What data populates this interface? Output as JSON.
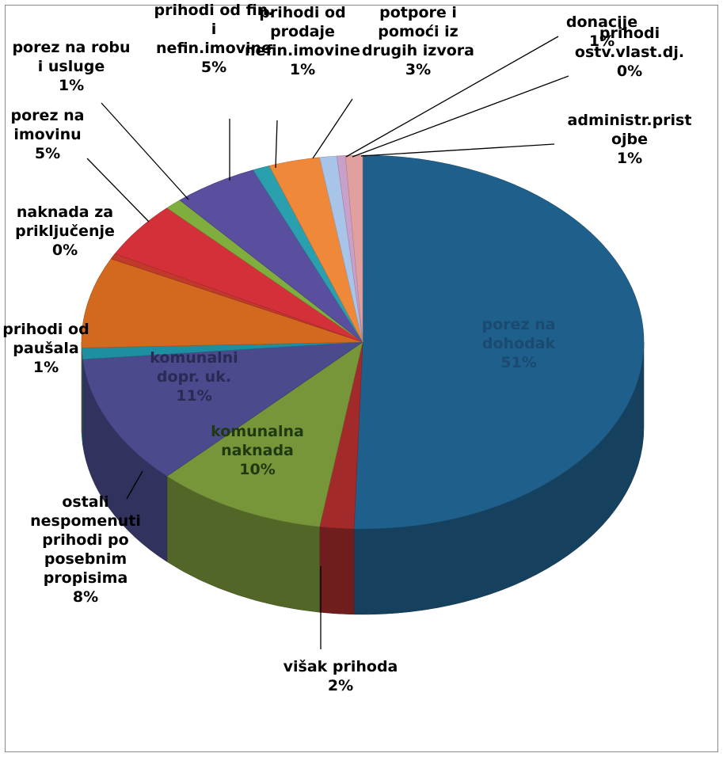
{
  "chart_data": {
    "type": "pie",
    "title": "",
    "style": "3d",
    "slices": [
      {
        "label": "porez na dohodak",
        "lines": [
          "porez na",
          "dohodak"
        ],
        "pct_label": "51%",
        "value": 51.5,
        "color": "#1F5F8B",
        "label_inside": true
      },
      {
        "label": "višak prihoda",
        "lines": [
          "višak prihoda"
        ],
        "pct_label": "2%",
        "value": 2,
        "color": "#A32A2A"
      },
      {
        "label": "komunalna naknada",
        "lines": [
          "komunalna",
          "naknada"
        ],
        "pct_label": "10%",
        "value": 10,
        "color": "#77963A",
        "label_inside": true
      },
      {
        "label": "komunalni dopr. uk.",
        "lines": [
          "komunalni",
          "dopr. uk."
        ],
        "pct_label": "11%",
        "value": 11.5,
        "color": "#4A4A8C",
        "label_inside": true
      },
      {
        "label": "prihodi od paušala",
        "lines": [
          "prihodi od",
          "paušala"
        ],
        "pct_label": "1%",
        "value": 1,
        "color": "#1E8FA0"
      },
      {
        "label": "ostali nespomenuti prihodi po posebnim propisima",
        "lines": [
          "ostali",
          "nespomenuti",
          "prihodi po",
          "posebnim",
          "propisima"
        ],
        "pct_label": "8%",
        "value": 8,
        "color": "#D2691E"
      },
      {
        "label": "naknada za priključenje",
        "lines": [
          "naknada za",
          "priključenje"
        ],
        "pct_label": "0%",
        "value": 0.5,
        "color": "#C0392B"
      },
      {
        "label": "porez na imovinu",
        "lines": [
          "porez na",
          "imovinu"
        ],
        "pct_label": "5%",
        "value": 5,
        "color": "#D3303A"
      },
      {
        "label": "porez na robu i usluge",
        "lines": [
          "porez na robu",
          "i usluge"
        ],
        "pct_label": "1%",
        "value": 1,
        "color": "#7FAE3E"
      },
      {
        "label": "prihodi od fin. i nefin.imovine",
        "lines": [
          "prihodi od fin.",
          "i",
          "nefin.imovine"
        ],
        "pct_label": "5%",
        "value": 5,
        "color": "#5A4E9E"
      },
      {
        "label": "prihodi od prodaje nefin.imovine",
        "lines": [
          "prihodi od",
          "prodaje",
          "nefin.imovine"
        ],
        "pct_label": "1%",
        "value": 1,
        "color": "#2A9FAE"
      },
      {
        "label": "potpore i pomoći iz drugih izvora",
        "lines": [
          "potpore i",
          "pomoći iz",
          "drugih izvora"
        ],
        "pct_label": "3%",
        "value": 3,
        "color": "#F0883A"
      },
      {
        "label": "donacije",
        "lines": [
          "donacije"
        ],
        "pct_label": "1%",
        "value": 1,
        "color": "#A8C4E8"
      },
      {
        "label": "prihodi ostv.vlast.dj.",
        "lines": [
          "prihodi",
          "ostv.vlast.dj."
        ],
        "pct_label": "0%",
        "value": 0.5,
        "color": "#C9A0C9"
      },
      {
        "label": "administr.pristojbe",
        "lines": [
          "administr.prist",
          "ojbe"
        ],
        "pct_label": "1%",
        "value": 1,
        "color": "#E0A0A0"
      }
    ]
  }
}
